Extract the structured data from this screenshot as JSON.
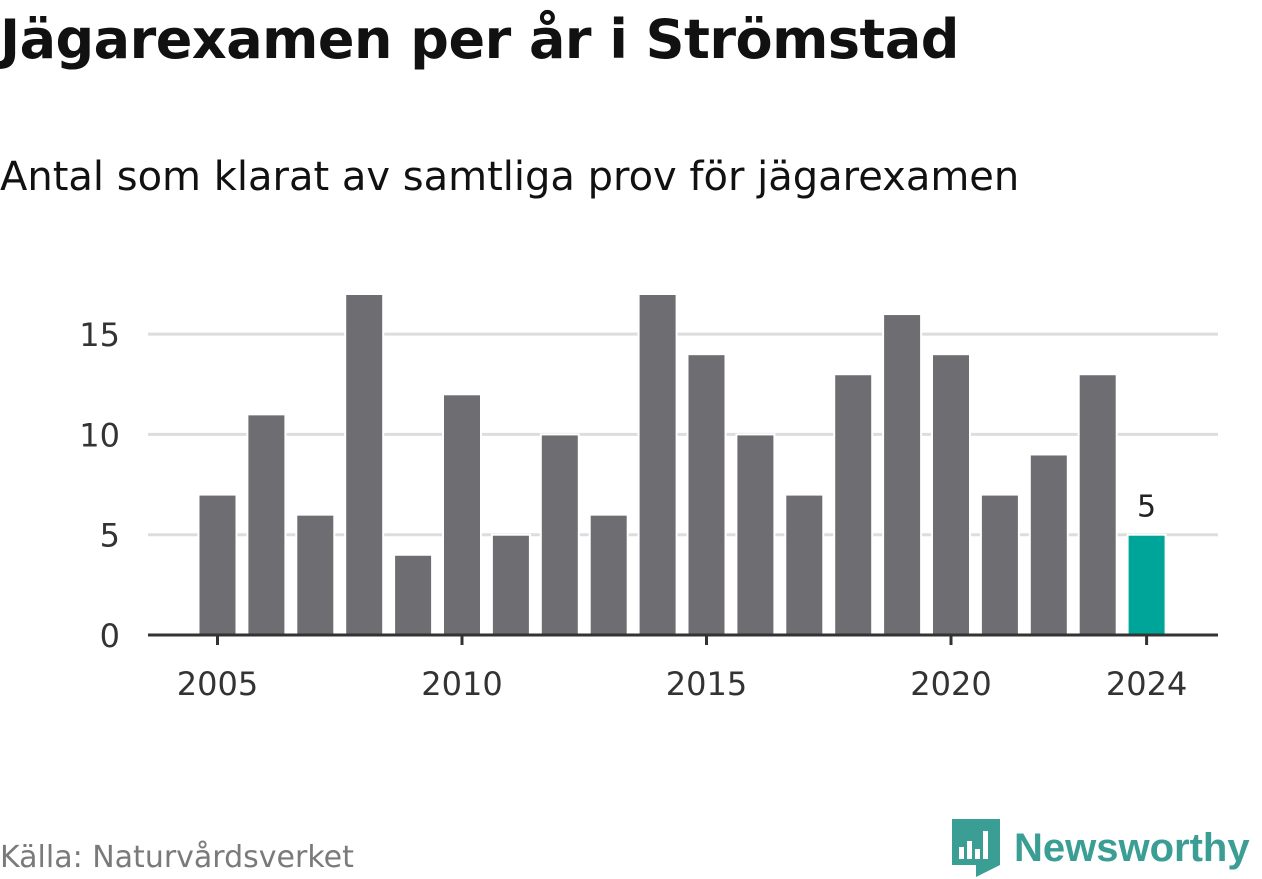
{
  "title": "Jägarexamen per år i Strömstad",
  "subtitle": "Antal som klarat av samtliga prov för jägarexamen",
  "source": "Källa: Naturvårdsverket",
  "brand": {
    "name": "Newsworthy",
    "icon": "newsworthy-logo-icon"
  },
  "colors": {
    "bar": "#6e6d72",
    "highlight": "#00a59a",
    "grid": "#dddddd",
    "axis": "#333333",
    "brand": "#3a9e95"
  },
  "chart_data": {
    "type": "bar",
    "categories": [
      "2005",
      "2006",
      "2007",
      "2008",
      "2009",
      "2010",
      "2011",
      "2012",
      "2013",
      "2014",
      "2015",
      "2016",
      "2017",
      "2018",
      "2019",
      "2020",
      "2021",
      "2022",
      "2023",
      "2024"
    ],
    "values": [
      7,
      11,
      6,
      17,
      4,
      12,
      5,
      10,
      6,
      17,
      14,
      10,
      7,
      13,
      16,
      14,
      7,
      9,
      13,
      5
    ],
    "highlight_index": 19,
    "highlight_label": "5",
    "x_tick_labels": [
      "2005",
      "2010",
      "2015",
      "2020",
      "2024"
    ],
    "y_ticks": [
      0,
      5,
      10,
      15
    ],
    "ylim": [
      0,
      17
    ],
    "grid": true,
    "title": "Jägarexamen per år i Strömstad",
    "subtitle": "Antal som klarat av samtliga prov för jägarexamen"
  }
}
